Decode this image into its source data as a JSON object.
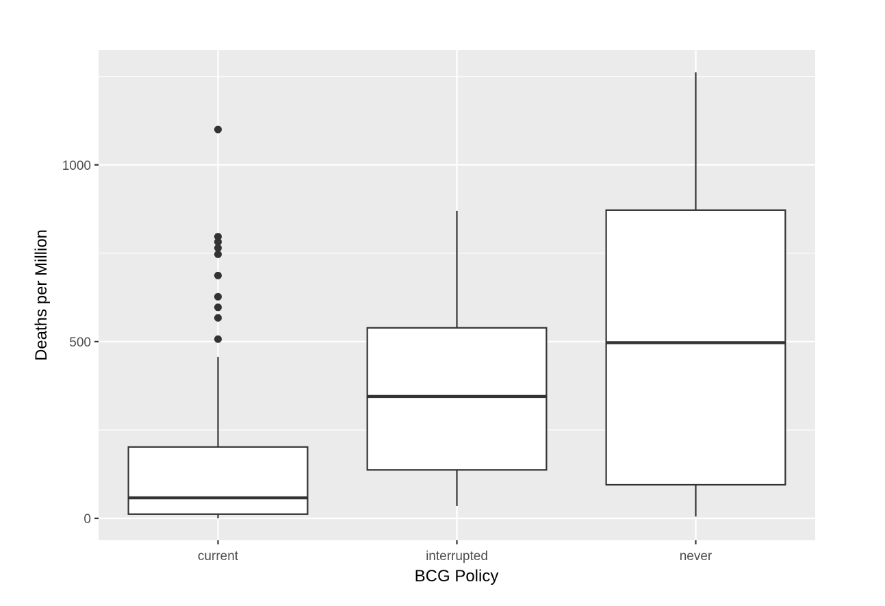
{
  "chart_data": {
    "type": "boxplot",
    "xlabel": "BCG Policy",
    "ylabel": "Deaths per Million",
    "ylim": [
      -62,
      1325
    ],
    "yticks": [
      0,
      500,
      1000
    ],
    "yminor": [
      250,
      750,
      1250
    ],
    "grid": true,
    "categories": [
      "current",
      "interrupted",
      "never"
    ],
    "boxes": [
      {
        "category": "current",
        "whisker_low": 0,
        "q1": 12,
        "median": 58,
        "q3": 202,
        "whisker_high": 457,
        "outliers": [
          507,
          567,
          597,
          627,
          687,
          747,
          765,
          782,
          797,
          1100
        ]
      },
      {
        "category": "interrupted",
        "whisker_low": 35,
        "q1": 137,
        "median": 345,
        "q3": 539,
        "whisker_high": 870,
        "outliers": []
      },
      {
        "category": "never",
        "whisker_low": 5,
        "q1": 95,
        "median": 497,
        "q3": 872,
        "whisker_high": 1262,
        "outliers": []
      }
    ],
    "colors": {
      "panel": "#ebebeb",
      "grid": "#ffffff",
      "box_fill": "#ffffff",
      "box_line": "#333333",
      "tick": "#333333"
    }
  }
}
